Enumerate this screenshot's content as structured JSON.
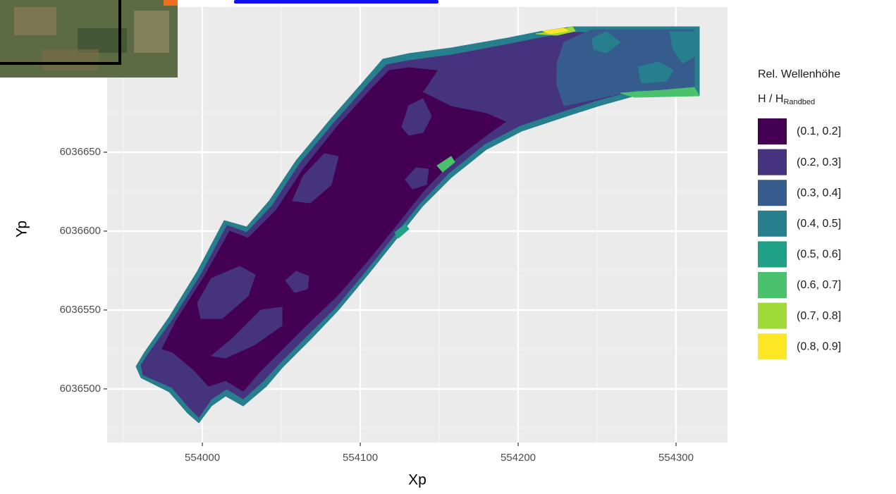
{
  "chart_data": {
    "type": "contour",
    "x_label": "Xp",
    "y_label": "Yp",
    "xlim": [
      553939.7,
      554332.6
    ],
    "ylim": [
      6036466,
      6036742
    ],
    "xticks": [
      554000,
      554100,
      554200,
      554300
    ],
    "yticks": [
      6036500,
      6036550,
      6036600,
      6036650
    ],
    "grid": true,
    "legend_title": "Rel. Wellenhöhe",
    "legend_subtitle": {
      "main": "H / H",
      "subscript": "Randbed"
    },
    "legend_position": "right",
    "levels": [
      {
        "name": "(0.1, 0.2]",
        "color": "#440154"
      },
      {
        "name": "(0.2, 0.3]",
        "color": "#46337e"
      },
      {
        "name": "(0.3, 0.4]",
        "color": "#365c8d"
      },
      {
        "name": "(0.4, 0.5]",
        "color": "#277f8e"
      },
      {
        "name": "(0.5, 0.6]",
        "color": "#1fa187"
      },
      {
        "name": "(0.6, 0.7]",
        "color": "#4ac16d"
      },
      {
        "name": "(0.7, 0.8]",
        "color": "#a0da39"
      },
      {
        "name": "(0.8, 0.9]",
        "color": "#fde725"
      }
    ]
  }
}
